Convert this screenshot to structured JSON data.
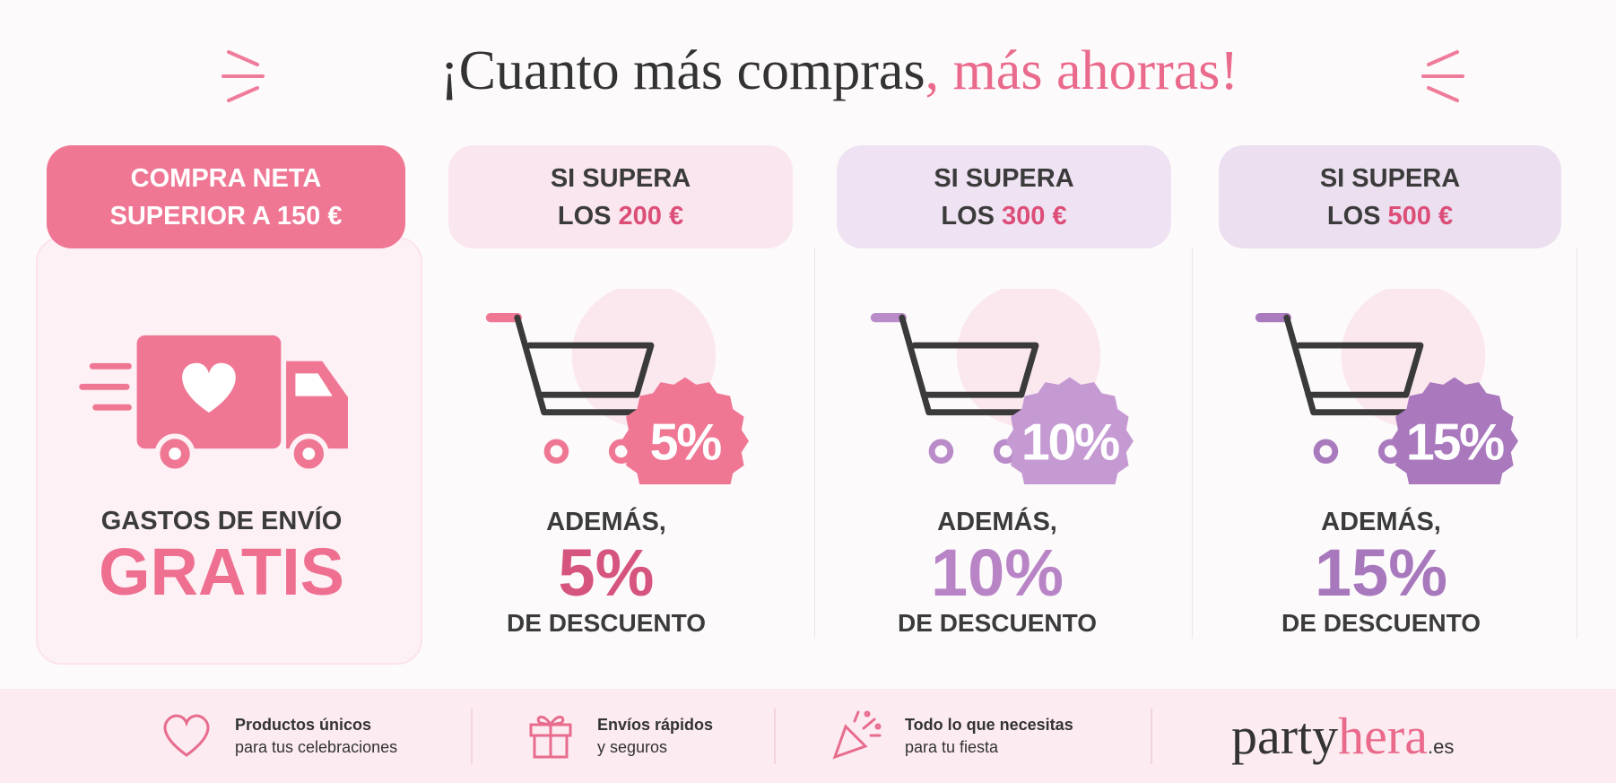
{
  "header": {
    "title_part1": "¡Cuanto más compras",
    "title_part2": ", más ahorras!"
  },
  "tiers": [
    {
      "label_line1": "COMPRA NETA",
      "label_line2": "SUPERIOR A 150 €",
      "text_line1": "GASTOS DE ENVÍO",
      "text_line2": "GRATIS"
    },
    {
      "label_line1": "SI SUPERA",
      "label_prefix": "LOS",
      "label_amount": "200 €",
      "badge": "5%",
      "text_line1": "ADEMÁS,",
      "text_line2": "5%",
      "text_line3": "DE DESCUENTO"
    },
    {
      "label_line1": "SI SUPERA",
      "label_prefix": "LOS",
      "label_amount": "300 €",
      "badge": "10%",
      "text_line1": "ADEMÁS,",
      "text_line2": "10%",
      "text_line3": "DE DESCUENTO"
    },
    {
      "label_line1": "SI SUPERA",
      "label_prefix": "LOS",
      "label_amount": "500 €",
      "badge": "15%",
      "text_line1": "ADEMÁS,",
      "text_line2": "15%",
      "text_line3": "DE DESCUENTO"
    }
  ],
  "footer": {
    "features": [
      {
        "title": "Productos únicos",
        "subtitle": "para tus celebraciones"
      },
      {
        "title": "Envíos rápidos",
        "subtitle": "y seguros"
      },
      {
        "title": "Todo lo que necesitas",
        "subtitle": "para tu fiesta"
      }
    ],
    "brand": {
      "part1": "party",
      "part2": "hera",
      "suffix": ".es"
    }
  }
}
